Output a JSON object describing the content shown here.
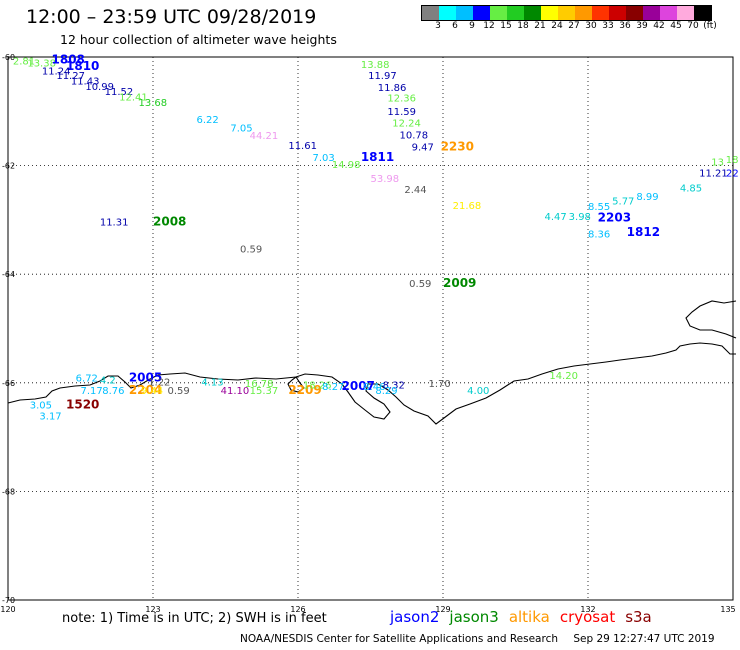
{
  "header": {
    "title": "12:00 – 23:59 UTC 09/28/2019",
    "subtitle": "12 hour collection of altimeter wave heights"
  },
  "legend": {
    "colors": [
      "#808080",
      "#00ffff",
      "#00bfff",
      "#0000ff",
      "#66ee44",
      "#22cc22",
      "#008800",
      "#ffff00",
      "#ffcc00",
      "#ff9900",
      "#ff3300",
      "#cc0000",
      "#880000",
      "#990099",
      "#dd44dd",
      "#ffaadd",
      "#000000"
    ],
    "labels": [
      "3",
      "6",
      "9",
      "12",
      "15",
      "18",
      "21",
      "24",
      "27",
      "30",
      "33",
      "36",
      "39",
      "42",
      "45",
      "70",
      "(ft)"
    ]
  },
  "axes": {
    "lat_ticks": [
      "-60",
      "-62",
      "-64",
      "-66",
      "-68",
      "-70"
    ],
    "lon_ticks": [
      "120",
      "123",
      "126",
      "129",
      "132",
      "135"
    ]
  },
  "wave_labels": [
    {
      "text": "2.81",
      "color": "#66ee44",
      "lon": 120.1,
      "lat": -60.06
    },
    {
      "text": "13.38",
      "color": "#66ee44",
      "lon": 120.4,
      "lat": -60.1
    },
    {
      "text": "1808",
      "color": "#0000ff",
      "lon": 120.9,
      "lat": -60.05
    },
    {
      "text": "1810",
      "color": "#0000ff",
      "lon": 121.2,
      "lat": -60.17
    },
    {
      "text": "11.24",
      "color": "#0000aa",
      "lon": 120.7,
      "lat": -60.25
    },
    {
      "text": "11.27",
      "color": "#0000aa",
      "lon": 121.0,
      "lat": -60.33
    },
    {
      "text": "11.43",
      "color": "#0000aa",
      "lon": 121.3,
      "lat": -60.43
    },
    {
      "text": "10.99",
      "color": "#0000aa",
      "lon": 121.6,
      "lat": -60.53
    },
    {
      "text": "11.52",
      "color": "#0000aa",
      "lon": 122.0,
      "lat": -60.63
    },
    {
      "text": "12.41",
      "color": "#66ee44",
      "lon": 122.3,
      "lat": -60.73
    },
    {
      "text": "13.68",
      "color": "#22cc22",
      "lon": 122.7,
      "lat": -60.83
    },
    {
      "text": "6.22",
      "color": "#00bfff",
      "lon": 123.9,
      "lat": -61.14
    },
    {
      "text": "7.05",
      "color": "#00bfff",
      "lon": 124.6,
      "lat": -61.3
    },
    {
      "text": "44.21",
      "color": "#ee99ee",
      "lon": 125.0,
      "lat": -61.44
    },
    {
      "text": "11.61",
      "color": "#0000aa",
      "lon": 125.8,
      "lat": -61.62
    },
    {
      "text": "7.03",
      "color": "#00bfff",
      "lon": 126.3,
      "lat": -61.84
    },
    {
      "text": "14.98",
      "color": "#66ee44",
      "lon": 126.7,
      "lat": -61.97
    },
    {
      "text": "1811",
      "color": "#0000ff",
      "lon": 127.3,
      "lat": -61.84
    },
    {
      "text": "13.88",
      "color": "#66ee44",
      "lon": 127.3,
      "lat": -60.13
    },
    {
      "text": "11.97",
      "color": "#0000aa",
      "lon": 127.45,
      "lat": -60.33
    },
    {
      "text": "11.86",
      "color": "#0000aa",
      "lon": 127.65,
      "lat": -60.55
    },
    {
      "text": "12.36",
      "color": "#66ee44",
      "lon": 127.85,
      "lat": -60.75
    },
    {
      "text": "11.59",
      "color": "#0000aa",
      "lon": 127.85,
      "lat": -60.99
    },
    {
      "text": "12.24",
      "color": "#66ee44",
      "lon": 127.95,
      "lat": -61.21
    },
    {
      "text": "10.78",
      "color": "#0000aa",
      "lon": 128.1,
      "lat": -61.43
    },
    {
      "text": "9.47",
      "color": "#0000aa",
      "lon": 128.35,
      "lat": -61.65
    },
    {
      "text": "2230",
      "color": "#ff9900",
      "lon": 128.95,
      "lat": -61.65
    },
    {
      "text": "53.98",
      "color": "#ee99ee",
      "lon": 127.5,
      "lat": -62.23
    },
    {
      "text": "2.44",
      "color": "#555555",
      "lon": 128.2,
      "lat": -62.43
    },
    {
      "text": "21.68",
      "color": "#ffee00",
      "lon": 129.2,
      "lat": -62.73
    },
    {
      "text": "4.47",
      "color": "#00cccc",
      "lon": 131.1,
      "lat": -62.93
    },
    {
      "text": "3.98",
      "color": "#00cccc",
      "lon": 131.6,
      "lat": -62.93
    },
    {
      "text": "8.55",
      "color": "#00bfff",
      "lon": 132.0,
      "lat": -62.74
    },
    {
      "text": "5.77",
      "color": "#00cccc",
      "lon": 132.5,
      "lat": -62.64
    },
    {
      "text": "8.99",
      "color": "#00bfff",
      "lon": 133.0,
      "lat": -62.56
    },
    {
      "text": "4.85",
      "color": "#00cccc",
      "lon": 133.9,
      "lat": -62.4
    },
    {
      "text": "2203",
      "color": "#0000ff",
      "lon": 132.2,
      "lat": -62.96
    },
    {
      "text": "8.36",
      "color": "#00bfff",
      "lon": 132.0,
      "lat": -63.25
    },
    {
      "text": "1812",
      "color": "#0000ff",
      "lon": 132.8,
      "lat": -63.22
    },
    {
      "text": "11.21",
      "color": "#0000aa",
      "lon": 134.3,
      "lat": -62.13
    },
    {
      "text": "22",
      "color": "#0000ff",
      "lon": 135.0,
      "lat": -62.13
    },
    {
      "text": "13",
      "color": "#66ee44",
      "lon": 134.55,
      "lat": -61.92
    },
    {
      "text": "18",
      "color": "#66ee44",
      "lon": 134.85,
      "lat": -61.88
    },
    {
      "text": "11.31",
      "color": "#0000aa",
      "lon": 121.9,
      "lat": -63.03
    },
    {
      "text": "2008",
      "color": "#008800",
      "lon": 123.0,
      "lat": -63.03
    },
    {
      "text": "0.59",
      "color": "#555555",
      "lon": 124.8,
      "lat": -63.53
    },
    {
      "text": "0.59",
      "color": "#555555",
      "lon": 128.3,
      "lat": -64.16
    },
    {
      "text": "2009",
      "color": "#008800",
      "lon": 129.0,
      "lat": -64.16
    },
    {
      "text": "6.72",
      "color": "#00bfff",
      "lon": 121.4,
      "lat": -65.9
    },
    {
      "text": "4.2",
      "color": "#00cccc",
      "lon": 121.9,
      "lat": -65.94
    },
    {
      "text": "2005",
      "color": "#0000ff",
      "lon": 122.5,
      "lat": -65.9
    },
    {
      "text": "1.22",
      "color": "#555555",
      "lon": 122.9,
      "lat": -65.98
    },
    {
      "text": "7.17",
      "color": "#00bfff",
      "lon": 121.5,
      "lat": -66.13
    },
    {
      "text": "8.76",
      "color": "#00bfff",
      "lon": 121.95,
      "lat": -66.13
    },
    {
      "text": "2204",
      "color": "#ff9900",
      "lon": 122.5,
      "lat": -66.13
    },
    {
      "text": "9.44",
      "color": "#ffee00",
      "lon": 122.75,
      "lat": -66.13
    },
    {
      "text": "0.59",
      "color": "#555555",
      "lon": 123.3,
      "lat": -66.13
    },
    {
      "text": "4.13",
      "color": "#00cccc",
      "lon": 124.0,
      "lat": -65.98
    },
    {
      "text": "41.10",
      "color": "#990099",
      "lon": 124.4,
      "lat": -66.13
    },
    {
      "text": "16.78",
      "color": "#66ee44",
      "lon": 124.9,
      "lat": -66.0
    },
    {
      "text": "15.37",
      "color": "#66ee44",
      "lon": 125.0,
      "lat": -66.13
    },
    {
      "text": "2209",
      "color": "#ff9900",
      "lon": 125.8,
      "lat": -66.13
    },
    {
      "text": "18.26",
      "color": "#66ee44",
      "lon": 126.1,
      "lat": -66.03
    },
    {
      "text": "8.27",
      "color": "#00bfff",
      "lon": 126.5,
      "lat": -66.06
    },
    {
      "text": "2007",
      "color": "#0000ff",
      "lon": 126.9,
      "lat": -66.06
    },
    {
      "text": "8.46",
      "color": "#00bfff",
      "lon": 127.35,
      "lat": -66.06
    },
    {
      "text": "8.32",
      "color": "#0000aa",
      "lon": 127.75,
      "lat": -66.03
    },
    {
      "text": "8.29",
      "color": "#00bfff",
      "lon": 127.6,
      "lat": -66.13
    },
    {
      "text": "1.70",
      "color": "#555555",
      "lon": 128.7,
      "lat": -66.0
    },
    {
      "text": "4.00",
      "color": "#00cccc",
      "lon": 129.5,
      "lat": -66.13
    },
    {
      "text": "14.20",
      "color": "#66ee44",
      "lon": 131.2,
      "lat": -65.86
    },
    {
      "text": "3.05",
      "color": "#00bfff",
      "lon": 120.45,
      "lat": -66.4
    },
    {
      "text": "1520",
      "color": "#880000",
      "lon": 121.2,
      "lat": -66.4
    },
    {
      "text": "3.17",
      "color": "#00bfff",
      "lon": 120.65,
      "lat": -66.6
    }
  ],
  "footer": {
    "note": "note: 1) Time is in UTC; 2) SWH is in feet",
    "satellites": [
      {
        "name": "jason2",
        "color": "#0000ff"
      },
      {
        "name": "jason3",
        "color": "#008800"
      },
      {
        "name": "altika",
        "color": "#ff9900"
      },
      {
        "name": "cryosat",
        "color": "#ff0000"
      },
      {
        "name": "s3a",
        "color": "#880000"
      }
    ],
    "credit": "NOAA/NESDIS Center for Satellite Applications and Research",
    "timestamp": "Sep 29 12:27:47 UTC 2019"
  }
}
